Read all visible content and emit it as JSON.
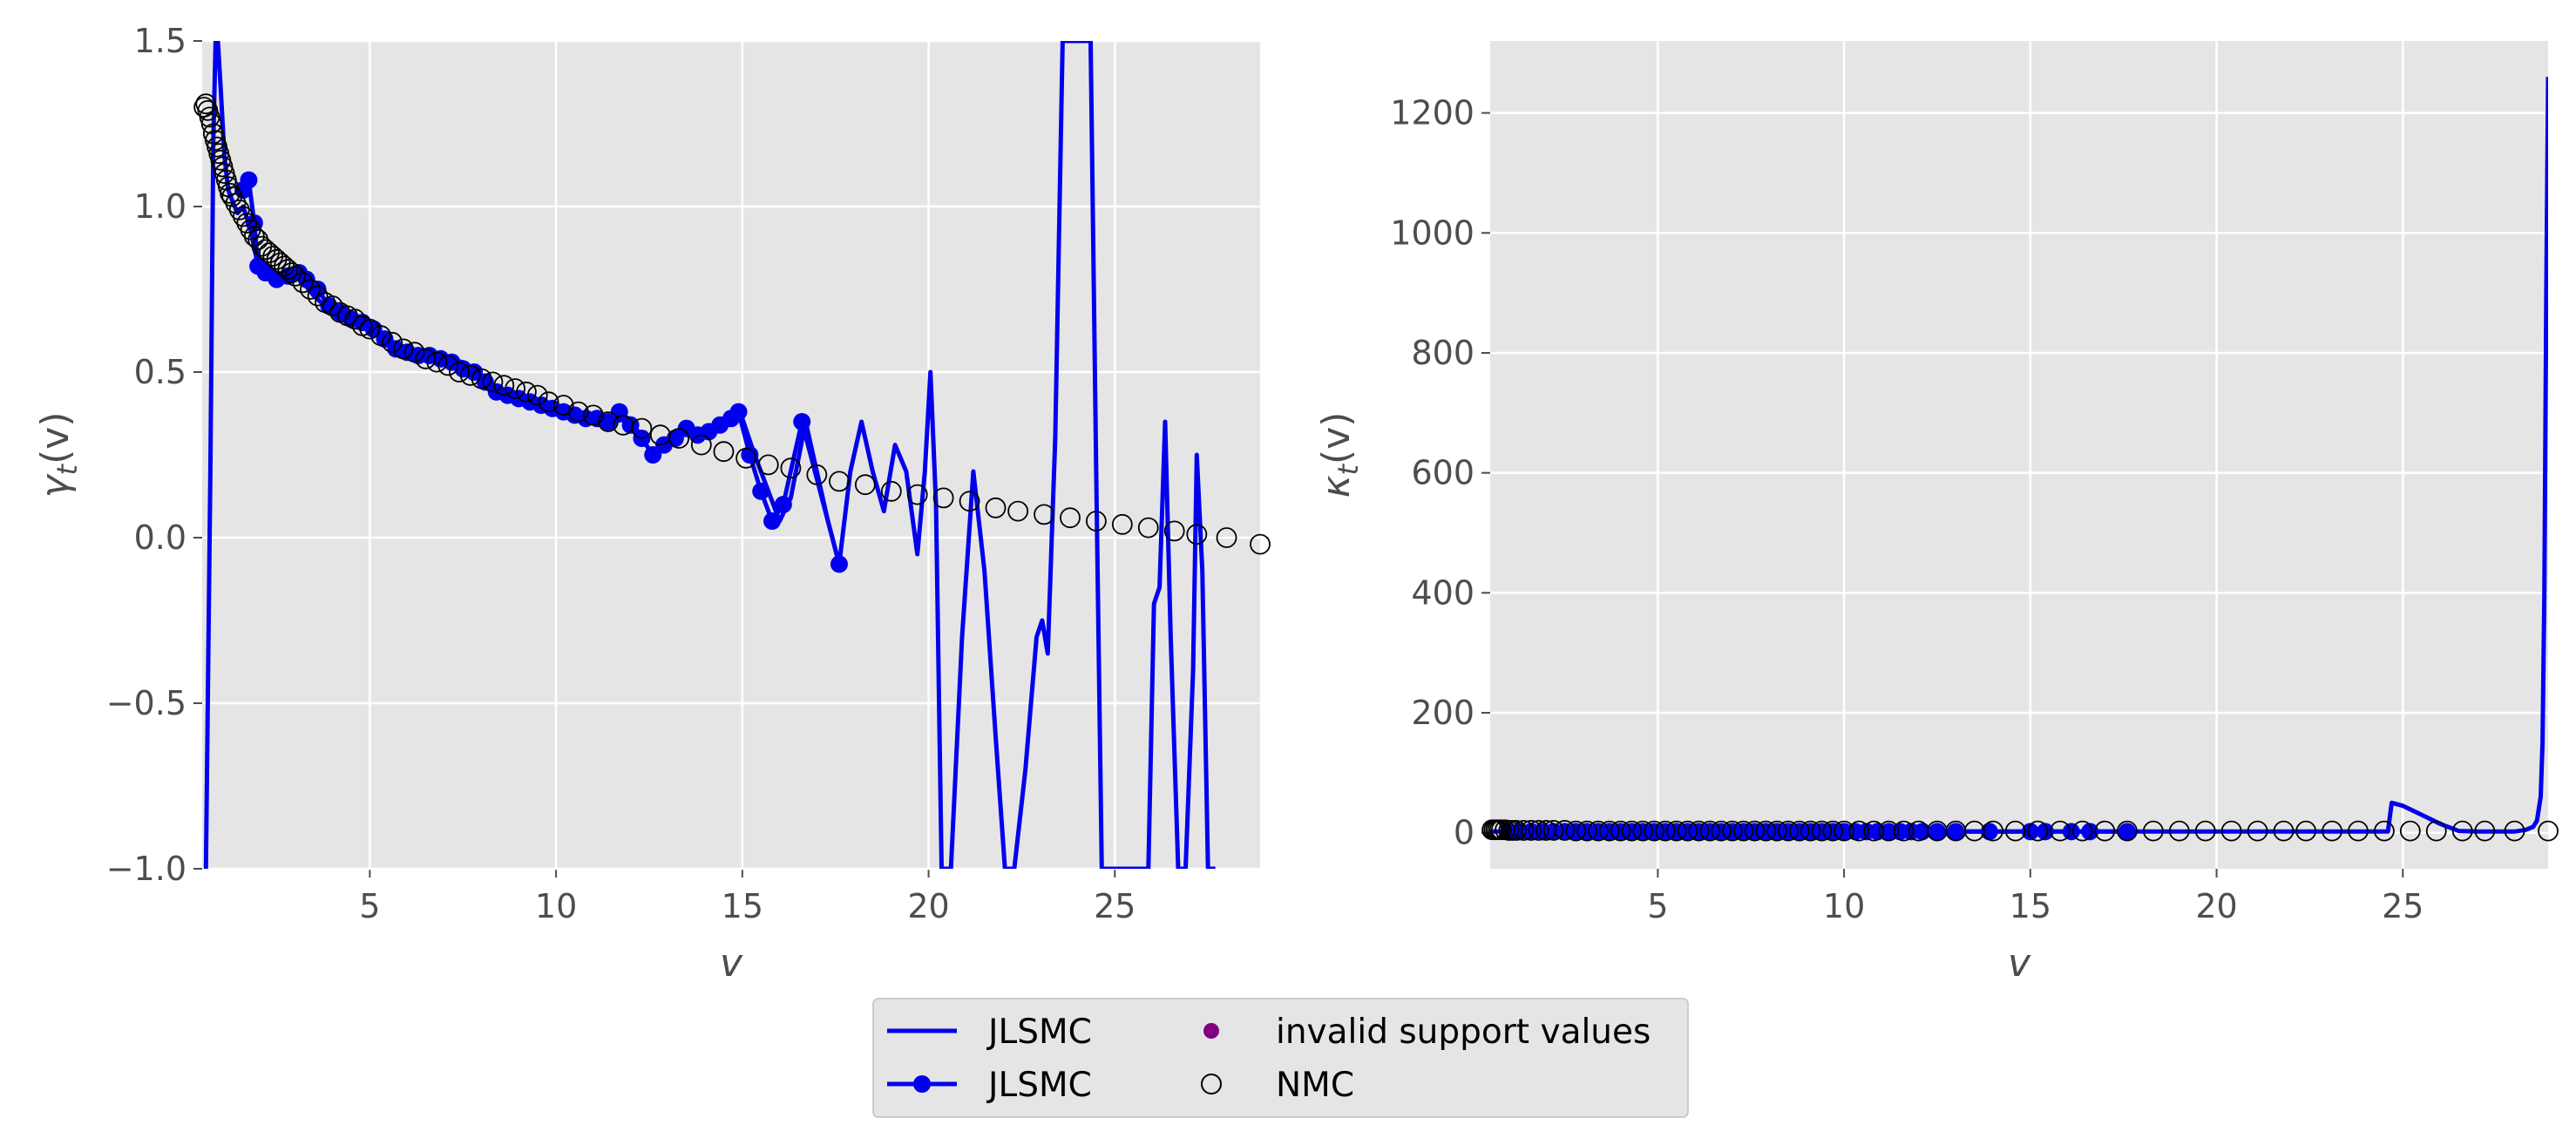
{
  "chart_data": [
    {
      "type": "line",
      "panel": "left",
      "xlabel": "v",
      "ylabel": "γ_t(v)",
      "ylabel_parts": {
        "base": "γ",
        "sub": "t",
        "rest": "(v)"
      },
      "xlim": [
        0.5,
        28.9
      ],
      "ylim": [
        -1.0,
        1.5
      ],
      "xticks": [
        5,
        10,
        15,
        20,
        25
      ],
      "xtick_labels": [
        "5",
        "10",
        "15",
        "20",
        "25"
      ],
      "yticks": [
        -1.0,
        -0.5,
        0.0,
        0.5,
        1.0,
        1.5
      ],
      "ytick_labels": [
        "−1.0",
        "−0.5",
        "0.0",
        "0.5",
        "1.0",
        "1.5"
      ],
      "grid": true,
      "series": [
        {
          "name": "JLSMC",
          "style": "line",
          "color": "#0000ee",
          "x": [
            0.6,
            0.72,
            0.8,
            0.86,
            0.92,
            1.0,
            1.1,
            1.2,
            1.3,
            1.45,
            1.6,
            1.8,
            2.0,
            2.3,
            2.6,
            3.0,
            3.5,
            4.0,
            4.5,
            5.0,
            5.5,
            6.0,
            6.5,
            7.0,
            7.5,
            8.0,
            8.5,
            9.0,
            9.5,
            10.0,
            10.5,
            11.0,
            11.5,
            12.0,
            12.3,
            12.6,
            13.0,
            13.4,
            13.8,
            14.2,
            14.6,
            15.0,
            15.3,
            15.7,
            16.0,
            16.3,
            16.7,
            17.0,
            17.3,
            17.6,
            17.9,
            18.2,
            18.5,
            18.8,
            19.1,
            19.4,
            19.7,
            19.9,
            20.05,
            20.2,
            20.35,
            20.6,
            20.9,
            21.2,
            21.5,
            21.8,
            22.05,
            22.3,
            22.6,
            22.9,
            23.05,
            23.2,
            23.4,
            23.6,
            23.75,
            23.9,
            24.15,
            24.35,
            24.5,
            24.65,
            24.8,
            25.1,
            25.5,
            25.9,
            26.05,
            26.2,
            26.35,
            26.5,
            26.7,
            26.9,
            27.1,
            27.2,
            27.35,
            27.5,
            27.7
          ],
          "y": [
            -1.0,
            0.2,
            1.2,
            1.5,
            1.5,
            1.35,
            1.15,
            1.05,
            1.02,
            0.98,
            1.0,
            0.93,
            0.82,
            0.8,
            0.79,
            0.8,
            0.73,
            0.68,
            0.66,
            0.65,
            0.6,
            0.56,
            0.55,
            0.54,
            0.53,
            0.49,
            0.44,
            0.43,
            0.41,
            0.38,
            0.37,
            0.35,
            0.35,
            0.36,
            0.3,
            0.25,
            0.28,
            0.34,
            0.31,
            0.32,
            0.34,
            0.36,
            0.26,
            0.14,
            0.05,
            0.12,
            0.35,
            0.2,
            0.05,
            -0.08,
            0.2,
            0.35,
            0.2,
            0.08,
            0.28,
            0.2,
            -0.05,
            0.2,
            0.5,
            0.1,
            -1.0,
            -1.0,
            -0.3,
            0.2,
            -0.1,
            -0.6,
            -1.0,
            -1.0,
            -0.7,
            -0.3,
            -0.25,
            -0.35,
            0.3,
            1.5,
            1.5,
            1.5,
            1.5,
            1.5,
            0.2,
            -1.0,
            -1.0,
            -1.0,
            -1.0,
            -1.0,
            -0.2,
            -0.15,
            0.35,
            -0.3,
            -1.0,
            -1.0,
            -0.4,
            0.25,
            -0.1,
            -1.0,
            -1.0
          ]
        },
        {
          "name": "JLSMC",
          "style": "line-marker",
          "color": "#0000ee",
          "x": [
            1.6,
            1.75,
            1.9,
            2.0,
            2.2,
            2.5,
            2.8,
            3.1,
            3.3,
            3.6,
            3.9,
            4.2,
            4.5,
            4.8,
            5.1,
            5.4,
            5.7,
            6.0,
            6.3,
            6.6,
            6.9,
            7.2,
            7.5,
            7.8,
            8.1,
            8.4,
            8.7,
            9.0,
            9.3,
            9.6,
            9.9,
            10.2,
            10.5,
            10.8,
            11.1,
            11.4,
            11.7,
            12.0,
            12.3,
            12.6,
            12.9,
            13.2,
            13.5,
            13.8,
            14.1,
            14.4,
            14.7,
            14.9,
            15.2,
            15.5,
            15.8,
            16.1,
            16.6,
            17.6
          ],
          "y": [
            1.05,
            1.08,
            0.95,
            0.82,
            0.8,
            0.78,
            0.79,
            0.8,
            0.78,
            0.75,
            0.7,
            0.68,
            0.66,
            0.65,
            0.63,
            0.6,
            0.57,
            0.56,
            0.55,
            0.55,
            0.54,
            0.53,
            0.51,
            0.5,
            0.47,
            0.44,
            0.43,
            0.42,
            0.41,
            0.4,
            0.39,
            0.38,
            0.37,
            0.36,
            0.36,
            0.35,
            0.38,
            0.34,
            0.3,
            0.25,
            0.28,
            0.3,
            0.33,
            0.31,
            0.32,
            0.34,
            0.36,
            0.38,
            0.25,
            0.14,
            0.05,
            0.1,
            0.35,
            -0.08
          ]
        },
        {
          "name": "invalid support values",
          "style": "scatter",
          "color": "#800080",
          "x": [],
          "y": []
        },
        {
          "name": "NMC",
          "style": "scatter-open",
          "color": "#000000",
          "x": [
            0.55,
            0.6,
            0.65,
            0.7,
            0.75,
            0.8,
            0.85,
            0.9,
            0.95,
            1.0,
            1.05,
            1.1,
            1.15,
            1.2,
            1.25,
            1.3,
            1.4,
            1.5,
            1.6,
            1.7,
            1.8,
            1.9,
            2.0,
            2.1,
            2.2,
            2.3,
            2.4,
            2.5,
            2.6,
            2.7,
            2.8,
            2.9,
            3.0,
            3.2,
            3.4,
            3.6,
            3.8,
            4.0,
            4.2,
            4.4,
            4.6,
            4.8,
            5.0,
            5.3,
            5.6,
            5.9,
            6.2,
            6.5,
            6.8,
            7.1,
            7.4,
            7.7,
            8.0,
            8.3,
            8.6,
            8.9,
            9.2,
            9.5,
            9.8,
            10.2,
            10.6,
            11.0,
            11.4,
            11.8,
            12.3,
            12.8,
            13.3,
            13.9,
            14.5,
            15.1,
            15.7,
            16.3,
            17.0,
            17.6,
            18.3,
            19.0,
            19.7,
            20.4,
            21.1,
            21.8,
            22.4,
            23.1,
            23.8,
            24.5,
            25.2,
            25.9,
            26.6,
            27.2,
            28.0,
            28.9
          ],
          "y": [
            1.3,
            1.31,
            1.29,
            1.27,
            1.25,
            1.22,
            1.2,
            1.18,
            1.16,
            1.14,
            1.12,
            1.1,
            1.08,
            1.06,
            1.04,
            1.03,
            1.01,
            0.99,
            0.97,
            0.95,
            0.93,
            0.91,
            0.9,
            0.88,
            0.87,
            0.86,
            0.85,
            0.84,
            0.83,
            0.82,
            0.81,
            0.8,
            0.79,
            0.77,
            0.75,
            0.73,
            0.71,
            0.7,
            0.68,
            0.67,
            0.66,
            0.64,
            0.63,
            0.61,
            0.59,
            0.57,
            0.56,
            0.54,
            0.53,
            0.52,
            0.5,
            0.49,
            0.48,
            0.47,
            0.46,
            0.45,
            0.44,
            0.43,
            0.41,
            0.4,
            0.38,
            0.37,
            0.35,
            0.34,
            0.33,
            0.31,
            0.3,
            0.28,
            0.26,
            0.24,
            0.22,
            0.21,
            0.19,
            0.17,
            0.16,
            0.14,
            0.13,
            0.12,
            0.11,
            0.09,
            0.08,
            0.07,
            0.06,
            0.05,
            0.04,
            0.03,
            0.02,
            0.01,
            0.0,
            -0.02
          ]
        }
      ]
    },
    {
      "type": "line",
      "panel": "right",
      "xlabel": "v",
      "ylabel": "κ_t(v)",
      "ylabel_parts": {
        "base": "κ",
        "sub": "t",
        "rest": "(v)"
      },
      "xlim": [
        0.5,
        28.9
      ],
      "ylim": [
        -60,
        1320
      ],
      "xticks": [
        5,
        10,
        15,
        20,
        25
      ],
      "xtick_labels": [
        "5",
        "10",
        "15",
        "20",
        "25"
      ],
      "yticks": [
        0,
        200,
        400,
        600,
        800,
        1000,
        1200
      ],
      "ytick_labels": [
        "0",
        "200",
        "400",
        "600",
        "800",
        "1000",
        "1200"
      ],
      "grid": true,
      "series": [
        {
          "name": "JLSMC",
          "style": "line",
          "color": "#0000ee",
          "x": [
            0.5,
            1.0,
            5.0,
            10.0,
            15.0,
            20.0,
            24.6,
            24.7,
            25.0,
            25.5,
            26.0,
            26.5,
            27.0,
            27.5,
            28.0,
            28.3,
            28.5,
            28.6,
            28.7,
            28.75,
            28.8,
            28.85,
            28.9
          ],
          "y": [
            2,
            2,
            2,
            2,
            2,
            2,
            2,
            50,
            45,
            30,
            15,
            3,
            2,
            2,
            2,
            5,
            10,
            20,
            60,
            150,
            400,
            900,
            1260
          ]
        },
        {
          "name": "JLSMC",
          "style": "line-marker",
          "color": "#0000ee",
          "x": [
            1.0,
            1.3,
            1.6,
            1.9,
            2.2,
            2.5,
            2.8,
            3.1,
            3.4,
            3.7,
            4.0,
            4.3,
            4.6,
            4.9,
            5.2,
            5.5,
            5.8,
            6.1,
            6.4,
            6.7,
            7.0,
            7.3,
            7.6,
            7.9,
            8.2,
            8.5,
            8.8,
            9.1,
            9.4,
            9.7,
            10.0,
            10.3,
            10.6,
            10.9,
            11.2,
            11.5,
            11.8,
            12.1,
            12.5,
            13.0,
            13.9,
            15.0,
            15.4,
            16.1,
            16.6,
            17.6
          ],
          "y": [
            2,
            2,
            2,
            2,
            2,
            2,
            2,
            2,
            2,
            2,
            2,
            2,
            2,
            2,
            2,
            2,
            2,
            2,
            2,
            2,
            2,
            2,
            2,
            2,
            2,
            2,
            2,
            2,
            2,
            2,
            2,
            2,
            2,
            2,
            2,
            2,
            2,
            2,
            2,
            2,
            2,
            2,
            2,
            2,
            2,
            2
          ]
        },
        {
          "name": "invalid support values",
          "style": "scatter",
          "color": "#800080",
          "x": [],
          "y": []
        },
        {
          "name": "NMC",
          "style": "scatter-open",
          "color": "#000000",
          "x": [
            0.55,
            0.6,
            0.65,
            0.7,
            0.75,
            0.8,
            0.9,
            1.0,
            1.1,
            1.2,
            1.4,
            1.6,
            1.8,
            2.0,
            2.2,
            2.5,
            2.8,
            3.1,
            3.4,
            3.7,
            4.0,
            4.3,
            4.6,
            4.9,
            5.2,
            5.5,
            5.8,
            6.1,
            6.4,
            6.7,
            7.0,
            7.3,
            7.6,
            7.9,
            8.2,
            8.5,
            8.8,
            9.1,
            9.4,
            9.7,
            10.0,
            10.4,
            10.8,
            11.2,
            11.6,
            12.0,
            12.5,
            13.0,
            13.5,
            14.0,
            14.6,
            15.2,
            15.8,
            16.4,
            17.0,
            17.6,
            18.3,
            19.0,
            19.7,
            20.4,
            21.1,
            21.8,
            22.4,
            23.1,
            23.8,
            24.5,
            25.2,
            25.9,
            26.6,
            27.2,
            28.0,
            28.9
          ],
          "y": [
            5,
            5,
            5,
            5,
            5,
            5,
            5,
            4,
            4,
            4,
            4,
            4,
            4,
            4,
            4,
            4,
            3,
            3,
            3,
            3,
            3,
            3,
            3,
            3,
            3,
            3,
            3,
            3,
            3,
            3,
            3,
            3,
            3,
            3,
            3,
            3,
            3,
            3,
            3,
            3,
            3,
            3,
            3,
            3,
            3,
            3,
            3,
            3,
            3,
            3,
            3,
            3,
            3,
            3,
            3,
            3,
            3,
            3,
            3,
            3,
            3,
            3,
            3,
            3,
            3,
            3,
            3,
            3,
            3,
            3,
            3,
            3
          ]
        }
      ]
    }
  ],
  "legend": {
    "items": [
      {
        "label": "JLSMC",
        "style": "line",
        "color": "#0000ee"
      },
      {
        "label": "invalid support values",
        "style": "dot",
        "color": "#800080"
      },
      {
        "label": "JLSMC",
        "style": "line-marker",
        "color": "#0000ee"
      },
      {
        "label": "NMC",
        "style": "open-circle",
        "color": "#000000"
      }
    ],
    "placement": "bottom-center",
    "columns": 2
  },
  "colors": {
    "panel_background": "#e5e5e5",
    "grid": "#ffffff",
    "tick_text": "#4d4d4d",
    "legend_background": "#e5e5e5"
  }
}
